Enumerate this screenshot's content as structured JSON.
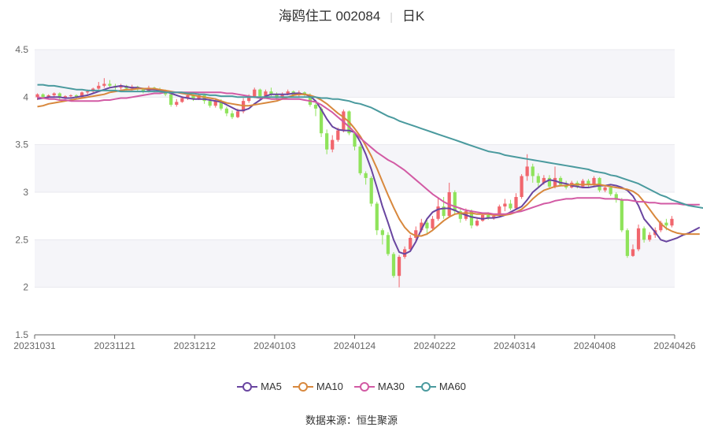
{
  "header": {
    "stock_name": "海鸥住工 002084",
    "period": "日K"
  },
  "source": {
    "label": "数据来源：",
    "value": "恒生聚源"
  },
  "colors": {
    "up": "#f1666d",
    "down": "#8fe35b",
    "MA5": "#6945a0",
    "MA10": "#d8883d",
    "MA30": "#d25aa4",
    "MA60": "#4a9a9e",
    "grid": "#e9e9ee",
    "band": "#f5f5f9"
  },
  "chart_data": {
    "type": "candlestick",
    "title": "海鸥住工 002084",
    "ylim": [
      1.5,
      4.5
    ],
    "y_ticks": [
      "1.5",
      "2",
      "2.5",
      "3",
      "3.5",
      "4",
      "4.5"
    ],
    "x_tick_labels": [
      "20231031",
      "20231121",
      "20231212",
      "20240103",
      "20240124",
      "20240222",
      "20240314",
      "20240408",
      "20240426"
    ],
    "legend": [
      "MA5",
      "MA10",
      "MA30",
      "MA60"
    ],
    "ohlc": [
      [
        4.0,
        4.03,
        3.97,
        4.04
      ],
      [
        4.03,
        4.0,
        3.98,
        4.04
      ],
      [
        4.0,
        4.02,
        3.98,
        4.03
      ],
      [
        4.02,
        4.04,
        4.0,
        4.05
      ],
      [
        4.04,
        3.99,
        3.97,
        4.05
      ],
      [
        3.99,
        4.01,
        3.98,
        4.02
      ],
      [
        4.01,
        4.02,
        3.99,
        4.03
      ],
      [
        4.02,
        4.0,
        3.98,
        4.03
      ],
      [
        4.0,
        4.05,
        3.99,
        4.06
      ],
      [
        4.05,
        4.06,
        4.03,
        4.08
      ],
      [
        4.06,
        4.09,
        4.05,
        4.1
      ],
      [
        4.09,
        4.12,
        4.08,
        4.16
      ],
      [
        4.12,
        4.14,
        4.1,
        4.2
      ],
      [
        4.14,
        4.12,
        4.1,
        4.18
      ],
      [
        4.12,
        4.1,
        4.08,
        4.14
      ],
      [
        4.1,
        4.12,
        4.08,
        4.14
      ],
      [
        4.12,
        4.09,
        4.07,
        4.13
      ],
      [
        4.09,
        4.11,
        4.07,
        4.13
      ],
      [
        4.11,
        4.08,
        4.06,
        4.12
      ],
      [
        4.08,
        4.06,
        4.04,
        4.1
      ],
      [
        4.06,
        4.1,
        4.05,
        4.12
      ],
      [
        4.1,
        4.08,
        4.06,
        4.11
      ],
      [
        4.08,
        4.06,
        4.04,
        4.1
      ],
      [
        4.06,
        4.03,
        4.01,
        4.08
      ],
      [
        4.03,
        3.92,
        3.9,
        4.05
      ],
      [
        3.92,
        3.95,
        3.9,
        3.98
      ],
      [
        3.95,
        3.99,
        3.94,
        4.01
      ],
      [
        3.99,
        4.02,
        3.97,
        4.04
      ],
      [
        4.02,
        3.98,
        3.96,
        4.03
      ],
      [
        3.98,
        4.02,
        3.97,
        4.04
      ],
      [
        4.02,
        3.96,
        3.93,
        4.03
      ],
      [
        3.96,
        3.91,
        3.89,
        3.98
      ],
      [
        3.91,
        3.96,
        3.89,
        3.99
      ],
      [
        3.96,
        3.88,
        3.86,
        3.98
      ],
      [
        3.88,
        3.83,
        3.8,
        3.9
      ],
      [
        3.83,
        3.79,
        3.77,
        3.86
      ],
      [
        3.79,
        3.85,
        3.78,
        3.88
      ],
      [
        3.85,
        3.96,
        3.83,
        3.99
      ],
      [
        3.96,
        4.0,
        3.94,
        4.03
      ],
      [
        4.0,
        4.08,
        3.99,
        4.1
      ],
      [
        4.08,
        4.01,
        3.99,
        4.09
      ],
      [
        4.01,
        4.06,
        4.0,
        4.08
      ],
      [
        4.06,
        4.03,
        4.01,
        4.1
      ],
      [
        4.03,
        3.99,
        3.97,
        4.05
      ],
      [
        3.99,
        4.03,
        3.98,
        4.05
      ],
      [
        4.03,
        4.06,
        4.02,
        4.08
      ],
      [
        4.06,
        4.02,
        4.0,
        4.07
      ],
      [
        4.02,
        4.05,
        4.0,
        4.07
      ],
      [
        4.05,
        4.02,
        4.0,
        4.06
      ],
      [
        4.02,
        3.92,
        3.9,
        4.04
      ],
      [
        3.92,
        3.88,
        3.8,
        3.94
      ],
      [
        3.88,
        3.62,
        3.58,
        3.9
      ],
      [
        3.62,
        3.45,
        3.4,
        3.66
      ],
      [
        3.45,
        3.55,
        3.42,
        3.6
      ],
      [
        3.55,
        3.65,
        3.53,
        3.68
      ],
      [
        3.65,
        3.85,
        3.63,
        3.87
      ],
      [
        3.85,
        3.62,
        3.6,
        3.86
      ],
      [
        3.62,
        3.48,
        3.44,
        3.64
      ],
      [
        3.48,
        3.2,
        3.18,
        3.5
      ],
      [
        3.2,
        3.15,
        3.08,
        3.22
      ],
      [
        3.15,
        2.88,
        2.85,
        3.17
      ],
      [
        2.88,
        2.6,
        2.55,
        2.9
      ],
      [
        2.6,
        2.55,
        2.45,
        2.62
      ],
      [
        2.55,
        2.35,
        2.33,
        2.58
      ],
      [
        2.35,
        2.12,
        2.1,
        2.37
      ],
      [
        2.12,
        2.32,
        2.0,
        2.34
      ],
      [
        2.32,
        2.4,
        2.3,
        2.43
      ],
      [
        2.4,
        2.52,
        2.38,
        2.55
      ],
      [
        2.52,
        2.6,
        2.48,
        2.64
      ],
      [
        2.6,
        2.68,
        2.58,
        2.72
      ],
      [
        2.68,
        2.62,
        2.55,
        2.71
      ],
      [
        2.62,
        2.72,
        2.6,
        2.75
      ],
      [
        2.72,
        2.85,
        2.7,
        2.95
      ],
      [
        2.85,
        2.75,
        2.72,
        2.95
      ],
      [
        2.75,
        3.0,
        2.73,
        3.1
      ],
      [
        3.0,
        2.8,
        2.77,
        3.02
      ],
      [
        2.8,
        2.72,
        2.68,
        2.84
      ],
      [
        2.72,
        2.8,
        2.7,
        2.83
      ],
      [
        2.8,
        2.65,
        2.62,
        2.82
      ],
      [
        2.65,
        2.7,
        2.64,
        2.73
      ],
      [
        2.7,
        2.76,
        2.69,
        2.78
      ],
      [
        2.76,
        2.73,
        2.71,
        2.79
      ],
      [
        2.73,
        2.75,
        2.71,
        2.77
      ],
      [
        2.75,
        2.85,
        2.74,
        2.87
      ],
      [
        2.85,
        2.88,
        2.8,
        2.93
      ],
      [
        2.88,
        2.83,
        2.81,
        2.92
      ],
      [
        2.83,
        2.95,
        2.82,
        2.99
      ],
      [
        2.95,
        3.17,
        2.93,
        3.19
      ],
      [
        3.17,
        3.27,
        3.12,
        3.4
      ],
      [
        3.27,
        3.17,
        3.1,
        3.3
      ],
      [
        3.17,
        3.1,
        3.05,
        3.2
      ],
      [
        3.1,
        3.15,
        3.08,
        3.18
      ],
      [
        3.15,
        3.06,
        3.04,
        3.18
      ],
      [
        3.06,
        3.15,
        3.04,
        3.27
      ],
      [
        3.15,
        3.08,
        3.06,
        3.17
      ],
      [
        3.08,
        3.05,
        3.03,
        3.12
      ],
      [
        3.05,
        3.1,
        3.04,
        3.12
      ],
      [
        3.1,
        3.06,
        3.04,
        3.12
      ],
      [
        3.06,
        3.12,
        3.05,
        3.14
      ],
      [
        3.12,
        3.08,
        3.05,
        3.14
      ],
      [
        3.08,
        3.15,
        3.06,
        3.17
      ],
      [
        3.15,
        3.02,
        3.0,
        3.16
      ],
      [
        3.02,
        3.05,
        3.0,
        3.07
      ],
      [
        3.05,
        2.98,
        2.96,
        3.07
      ],
      [
        2.98,
        2.92,
        2.89,
        3.0
      ],
      [
        2.92,
        2.6,
        2.58,
        2.94
      ],
      [
        2.6,
        2.33,
        2.31,
        2.62
      ],
      [
        2.33,
        2.4,
        2.32,
        2.45
      ],
      [
        2.4,
        2.62,
        2.38,
        2.66
      ],
      [
        2.62,
        2.5,
        2.47,
        2.64
      ],
      [
        2.5,
        2.55,
        2.48,
        2.58
      ],
      [
        2.55,
        2.6,
        2.52,
        2.63
      ],
      [
        2.6,
        2.68,
        2.58,
        2.7
      ],
      [
        2.68,
        2.65,
        2.6,
        2.72
      ],
      [
        2.65,
        2.72,
        2.63,
        2.75
      ]
    ],
    "series": [
      {
        "name": "MA5",
        "values": [
          3.98,
          3.99,
          4.0,
          4.0,
          4.0,
          3.99,
          3.99,
          4.0,
          4.01,
          4.02,
          4.04,
          4.06,
          4.08,
          4.1,
          4.11,
          4.12,
          4.11,
          4.1,
          4.1,
          4.09,
          4.08,
          4.08,
          4.07,
          4.06,
          4.04,
          4.02,
          4.0,
          3.99,
          3.98,
          3.98,
          3.98,
          3.97,
          3.96,
          3.95,
          3.92,
          3.89,
          3.86,
          3.86,
          3.88,
          3.93,
          3.97,
          4.01,
          4.03,
          4.03,
          4.03,
          4.03,
          4.04,
          4.04,
          4.03,
          4.01,
          3.96,
          3.87,
          3.77,
          3.69,
          3.66,
          3.65,
          3.65,
          3.63,
          3.53,
          3.4,
          3.24,
          3.05,
          2.85,
          2.68,
          2.5,
          2.37,
          2.35,
          2.38,
          2.48,
          2.61,
          2.72,
          2.79,
          2.82,
          2.83,
          2.83,
          2.81,
          2.78,
          2.76,
          2.74,
          2.73,
          2.72,
          2.73,
          2.73,
          2.74,
          2.76,
          2.79,
          2.82,
          2.85,
          2.92,
          3.0,
          3.05,
          3.1,
          3.13,
          3.12,
          3.1,
          3.09,
          3.07,
          3.06,
          3.05,
          3.05,
          3.06,
          3.07,
          3.07,
          3.08,
          3.07,
          3.05,
          3.02,
          2.96,
          2.86,
          2.72,
          2.65,
          2.58,
          2.5,
          2.48,
          2.5,
          2.52,
          2.55,
          2.57,
          2.6,
          2.63
        ]
      },
      {
        "name": "MA10",
        "values": [
          3.9,
          3.91,
          3.93,
          3.94,
          3.95,
          3.96,
          3.97,
          3.98,
          3.99,
          4.0,
          4.01,
          4.02,
          4.03,
          4.05,
          4.06,
          4.07,
          4.08,
          4.08,
          4.09,
          4.09,
          4.09,
          4.09,
          4.08,
          4.07,
          4.06,
          4.05,
          4.04,
          4.03,
          4.02,
          4.01,
          4.0,
          3.99,
          3.98,
          3.96,
          3.94,
          3.93,
          3.92,
          3.91,
          3.91,
          3.92,
          3.93,
          3.94,
          3.95,
          3.96,
          3.98,
          4.0,
          4.02,
          4.03,
          4.03,
          4.02,
          4.0,
          3.97,
          3.93,
          3.88,
          3.83,
          3.79,
          3.74,
          3.67,
          3.59,
          3.49,
          3.38,
          3.25,
          3.11,
          2.97,
          2.84,
          2.72,
          2.63,
          2.57,
          2.54,
          2.54,
          2.56,
          2.6,
          2.65,
          2.7,
          2.74,
          2.77,
          2.78,
          2.78,
          2.78,
          2.77,
          2.77,
          2.77,
          2.76,
          2.76,
          2.76,
          2.77,
          2.79,
          2.82,
          2.87,
          2.93,
          2.98,
          3.02,
          3.04,
          3.06,
          3.07,
          3.07,
          3.08,
          3.08,
          3.08,
          3.08,
          3.08,
          3.08,
          3.07,
          3.06,
          3.05,
          3.04,
          3.03,
          3.01,
          2.97,
          2.9,
          2.82,
          2.74,
          2.67,
          2.62,
          2.59,
          2.57,
          2.56,
          2.56,
          2.56,
          2.56
        ]
      },
      {
        "name": "MA30",
        "values": [
          4.0,
          3.99,
          3.98,
          3.98,
          3.97,
          3.97,
          3.96,
          3.96,
          3.96,
          3.96,
          3.96,
          3.96,
          3.97,
          3.97,
          3.98,
          3.99,
          3.99,
          4.0,
          4.01,
          4.02,
          4.03,
          4.04,
          4.04,
          4.05,
          4.05,
          4.05,
          4.05,
          4.05,
          4.05,
          4.05,
          4.05,
          4.05,
          4.05,
          4.05,
          4.04,
          4.04,
          4.03,
          4.02,
          4.01,
          4.0,
          3.99,
          3.99,
          3.98,
          3.98,
          3.98,
          3.98,
          3.98,
          3.98,
          3.97,
          3.96,
          3.95,
          3.92,
          3.88,
          3.84,
          3.79,
          3.74,
          3.69,
          3.63,
          3.57,
          3.52,
          3.47,
          3.42,
          3.38,
          3.34,
          3.31,
          3.27,
          3.23,
          3.18,
          3.13,
          3.08,
          3.03,
          2.98,
          2.94,
          2.9,
          2.87,
          2.85,
          2.83,
          2.81,
          2.8,
          2.79,
          2.78,
          2.78,
          2.77,
          2.77,
          2.77,
          2.78,
          2.79,
          2.8,
          2.82,
          2.84,
          2.86,
          2.88,
          2.89,
          2.91,
          2.92,
          2.93,
          2.93,
          2.94,
          2.94,
          2.94,
          2.94,
          2.94,
          2.93,
          2.93,
          2.93,
          2.92,
          2.92,
          2.91,
          2.9,
          2.9,
          2.89,
          2.89,
          2.88,
          2.88,
          2.88,
          2.88,
          2.87,
          2.87,
          2.87,
          2.87
        ]
      },
      {
        "name": "MA60",
        "values": [
          4.13,
          4.13,
          4.12,
          4.12,
          4.11,
          4.1,
          4.09,
          4.08,
          4.08,
          4.07,
          4.07,
          4.07,
          4.07,
          4.07,
          4.07,
          4.06,
          4.06,
          4.06,
          4.06,
          4.06,
          4.06,
          4.06,
          4.06,
          4.05,
          4.05,
          4.05,
          4.05,
          4.04,
          4.04,
          4.03,
          4.03,
          4.02,
          4.02,
          4.01,
          4.01,
          4.01,
          4.0,
          4.0,
          4.0,
          4.0,
          4.0,
          4.0,
          4.0,
          4.0,
          4.0,
          4.0,
          4.0,
          4.0,
          4.0,
          4.0,
          4.0,
          3.99,
          3.99,
          3.98,
          3.98,
          3.97,
          3.96,
          3.94,
          3.93,
          3.91,
          3.89,
          3.86,
          3.83,
          3.8,
          3.78,
          3.75,
          3.73,
          3.71,
          3.69,
          3.67,
          3.65,
          3.63,
          3.61,
          3.59,
          3.57,
          3.55,
          3.53,
          3.51,
          3.49,
          3.47,
          3.45,
          3.43,
          3.42,
          3.41,
          3.39,
          3.38,
          3.37,
          3.36,
          3.35,
          3.34,
          3.33,
          3.32,
          3.31,
          3.3,
          3.29,
          3.28,
          3.27,
          3.26,
          3.25,
          3.24,
          3.22,
          3.21,
          3.2,
          3.18,
          3.17,
          3.15,
          3.13,
          3.11,
          3.09,
          3.06,
          3.03,
          3.0,
          2.97,
          2.95,
          2.92,
          2.9,
          2.88,
          2.86,
          2.85,
          2.84,
          2.83,
          2.82
        ]
      }
    ]
  }
}
